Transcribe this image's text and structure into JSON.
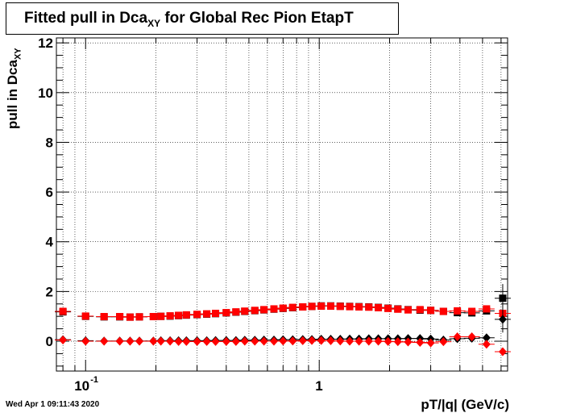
{
  "title": {
    "main": "Fitted pull in Dca",
    "sub": "XY",
    "rest": " for Global Rec Pion EtapT"
  },
  "y_axis": {
    "label": "pull in Dca",
    "label_sub": "XY"
  },
  "x_axis": {
    "label": "pT/|q| (GeV/c)"
  },
  "timestamp": "Wed Apr  1 09:11:43 2020",
  "colors": {
    "black_series": "#000000",
    "red_series": "#ff0000",
    "grid": "#000000"
  },
  "chart_data": {
    "type": "scatter",
    "xscale": "log",
    "xlim": [
      0.075,
      6.4
    ],
    "ylim": [
      -1.2,
      12.2
    ],
    "x_ticks": [
      {
        "value": 0.1,
        "label": "10",
        "sup": "-1"
      },
      {
        "value": 1,
        "label": "1",
        "sup": ""
      }
    ],
    "y_ticks": [
      0,
      2,
      4,
      6,
      8,
      10,
      12
    ],
    "grid": true,
    "series": [
      {
        "marker": "square",
        "color": "#000000",
        "points": [
          [
            0.08,
            1.18
          ],
          [
            0.1,
            1.0
          ],
          [
            0.12,
            0.98
          ],
          [
            0.14,
            0.98
          ],
          [
            0.155,
            0.97
          ],
          [
            0.17,
            0.98
          ],
          [
            0.195,
            0.99
          ],
          [
            0.21,
            1.0
          ],
          [
            0.23,
            1.01
          ],
          [
            0.25,
            1.03
          ],
          [
            0.27,
            1.05
          ],
          [
            0.3,
            1.07
          ],
          [
            0.33,
            1.09
          ],
          [
            0.36,
            1.11
          ],
          [
            0.4,
            1.14
          ],
          [
            0.44,
            1.17
          ],
          [
            0.48,
            1.2
          ],
          [
            0.53,
            1.23
          ],
          [
            0.58,
            1.26
          ],
          [
            0.64,
            1.29
          ],
          [
            0.7,
            1.32
          ],
          [
            0.77,
            1.35
          ],
          [
            0.85,
            1.38
          ],
          [
            0.93,
            1.4
          ],
          [
            1.02,
            1.42
          ],
          [
            1.12,
            1.42
          ],
          [
            1.23,
            1.41
          ],
          [
            1.35,
            1.4
          ],
          [
            1.48,
            1.39
          ],
          [
            1.63,
            1.38
          ],
          [
            1.79,
            1.36
          ],
          [
            1.97,
            1.33
          ],
          [
            2.17,
            1.3
          ],
          [
            2.4,
            1.27
          ],
          [
            2.7,
            1.25
          ],
          [
            3.0,
            1.24
          ],
          [
            3.4,
            1.2
          ],
          [
            3.9,
            1.15
          ],
          [
            4.5,
            1.14
          ],
          [
            5.2,
            1.22
          ],
          [
            6.1,
            1.73
          ]
        ]
      },
      {
        "marker": "square",
        "color": "#ff0000",
        "points": [
          [
            0.08,
            1.2
          ],
          [
            0.1,
            1.01
          ],
          [
            0.12,
            0.99
          ],
          [
            0.14,
            0.99
          ],
          [
            0.155,
            0.97
          ],
          [
            0.17,
            0.98
          ],
          [
            0.195,
            0.99
          ],
          [
            0.21,
            1.0
          ],
          [
            0.23,
            1.02
          ],
          [
            0.25,
            1.04
          ],
          [
            0.27,
            1.06
          ],
          [
            0.3,
            1.08
          ],
          [
            0.33,
            1.1
          ],
          [
            0.36,
            1.12
          ],
          [
            0.4,
            1.15
          ],
          [
            0.44,
            1.18
          ],
          [
            0.48,
            1.21
          ],
          [
            0.53,
            1.24
          ],
          [
            0.58,
            1.27
          ],
          [
            0.64,
            1.3
          ],
          [
            0.7,
            1.33
          ],
          [
            0.77,
            1.36
          ],
          [
            0.85,
            1.38
          ],
          [
            0.93,
            1.4
          ],
          [
            1.02,
            1.41
          ],
          [
            1.12,
            1.41
          ],
          [
            1.23,
            1.4
          ],
          [
            1.35,
            1.39
          ],
          [
            1.48,
            1.38
          ],
          [
            1.63,
            1.37
          ],
          [
            1.79,
            1.35
          ],
          [
            1.97,
            1.32
          ],
          [
            2.17,
            1.29
          ],
          [
            2.4,
            1.26
          ],
          [
            2.7,
            1.27
          ],
          [
            3.0,
            1.24
          ],
          [
            3.4,
            1.2
          ],
          [
            3.9,
            1.22
          ],
          [
            4.5,
            1.2
          ],
          [
            5.2,
            1.3
          ],
          [
            6.1,
            1.12
          ]
        ]
      },
      {
        "marker": "diamond",
        "color": "#000000",
        "points": [
          [
            0.08,
            0.06
          ],
          [
            0.1,
            0.02
          ],
          [
            0.12,
            0.01
          ],
          [
            0.14,
            0.01
          ],
          [
            0.155,
            0.01
          ],
          [
            0.17,
            0.01
          ],
          [
            0.195,
            0.01
          ],
          [
            0.21,
            0.02
          ],
          [
            0.23,
            0.02
          ],
          [
            0.25,
            0.02
          ],
          [
            0.27,
            0.02
          ],
          [
            0.3,
            0.02
          ],
          [
            0.33,
            0.02
          ],
          [
            0.36,
            0.03
          ],
          [
            0.4,
            0.03
          ],
          [
            0.44,
            0.03
          ],
          [
            0.48,
            0.04
          ],
          [
            0.53,
            0.04
          ],
          [
            0.58,
            0.05
          ],
          [
            0.64,
            0.05
          ],
          [
            0.7,
            0.06
          ],
          [
            0.77,
            0.06
          ],
          [
            0.85,
            0.07
          ],
          [
            0.93,
            0.07
          ],
          [
            1.02,
            0.08
          ],
          [
            1.12,
            0.08
          ],
          [
            1.23,
            0.08
          ],
          [
            1.35,
            0.09
          ],
          [
            1.48,
            0.09
          ],
          [
            1.63,
            0.1
          ],
          [
            1.79,
            0.1
          ],
          [
            1.97,
            0.1
          ],
          [
            2.17,
            0.1
          ],
          [
            2.4,
            0.11
          ],
          [
            2.7,
            0.11
          ],
          [
            3.0,
            0.09
          ],
          [
            3.4,
            0.05
          ],
          [
            3.9,
            0.1
          ],
          [
            4.5,
            0.12
          ],
          [
            5.2,
            0.14
          ],
          [
            6.1,
            0.88
          ]
        ]
      },
      {
        "marker": "diamond",
        "color": "#ff0000",
        "points": [
          [
            0.08,
            0.05
          ],
          [
            0.1,
            0.0
          ],
          [
            0.12,
            0.0
          ],
          [
            0.14,
            0.0
          ],
          [
            0.155,
            0.0
          ],
          [
            0.17,
            0.0
          ],
          [
            0.195,
            0.0
          ],
          [
            0.21,
            0.0
          ],
          [
            0.23,
            0.0
          ],
          [
            0.25,
            -0.01
          ],
          [
            0.27,
            -0.01
          ],
          [
            0.3,
            -0.01
          ],
          [
            0.33,
            -0.01
          ],
          [
            0.36,
            -0.01
          ],
          [
            0.4,
            -0.01
          ],
          [
            0.44,
            -0.01
          ],
          [
            0.48,
            0.0
          ],
          [
            0.53,
            0.0
          ],
          [
            0.58,
            0.0
          ],
          [
            0.64,
            0.0
          ],
          [
            0.7,
            0.01
          ],
          [
            0.77,
            0.01
          ],
          [
            0.85,
            0.02
          ],
          [
            0.93,
            0.03
          ],
          [
            1.02,
            0.03
          ],
          [
            1.12,
            0.02
          ],
          [
            1.23,
            0.01
          ],
          [
            1.35,
            0.0
          ],
          [
            1.48,
            0.0
          ],
          [
            1.63,
            0.0
          ],
          [
            1.79,
            0.0
          ],
          [
            1.97,
            -0.01
          ],
          [
            2.17,
            -0.02
          ],
          [
            2.4,
            -0.03
          ],
          [
            2.7,
            -0.05
          ],
          [
            3.0,
            -0.07
          ],
          [
            3.4,
            -0.02
          ],
          [
            3.9,
            0.18
          ],
          [
            4.5,
            0.18
          ],
          [
            5.2,
            -0.12
          ],
          [
            6.1,
            -0.42
          ]
        ]
      }
    ]
  }
}
